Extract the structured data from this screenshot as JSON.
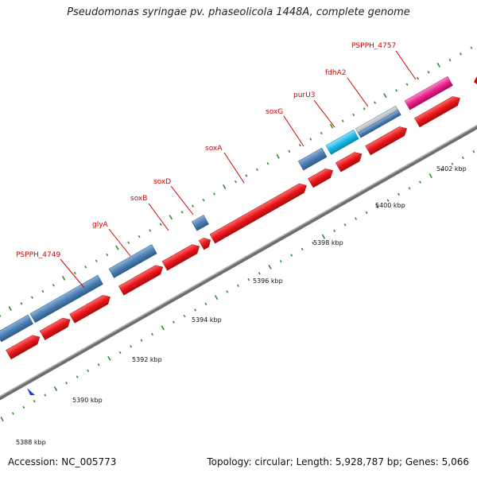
{
  "title": "Pseudomonas syringae pv. phaseolicola 1448A, complete genome",
  "footer": {
    "accession": "Accession: NC_005773",
    "stats": "Topology: circular; Length: 5,928,787 bp; Genes: 5,066"
  },
  "colors": {
    "forward_cds": "#e8161b",
    "reverse_cds": "#4a7fb5",
    "rna_cyan": "#1ab8e8",
    "pseudo_grey": "#a0a8b0",
    "magenta": "#e8228a",
    "backbone": "#808080",
    "label": "#d40000",
    "tick": "#2e8b2e"
  },
  "scale_labels": [
    "5388 kbp",
    "5390 kbp",
    "5392 kbp",
    "5394 kbp",
    "5396 kbp",
    "5398 kbp",
    "5400 kbp",
    "5402 kbp"
  ],
  "genes": [
    {
      "name": "PSPPH_4749"
    },
    {
      "name": "glyA"
    },
    {
      "name": "soxB"
    },
    {
      "name": "soxD"
    },
    {
      "name": "soxA"
    },
    {
      "name": "soxG"
    },
    {
      "name": "purU3"
    },
    {
      "name": "fdhA2"
    },
    {
      "name": "PSPPH_4757"
    }
  ]
}
